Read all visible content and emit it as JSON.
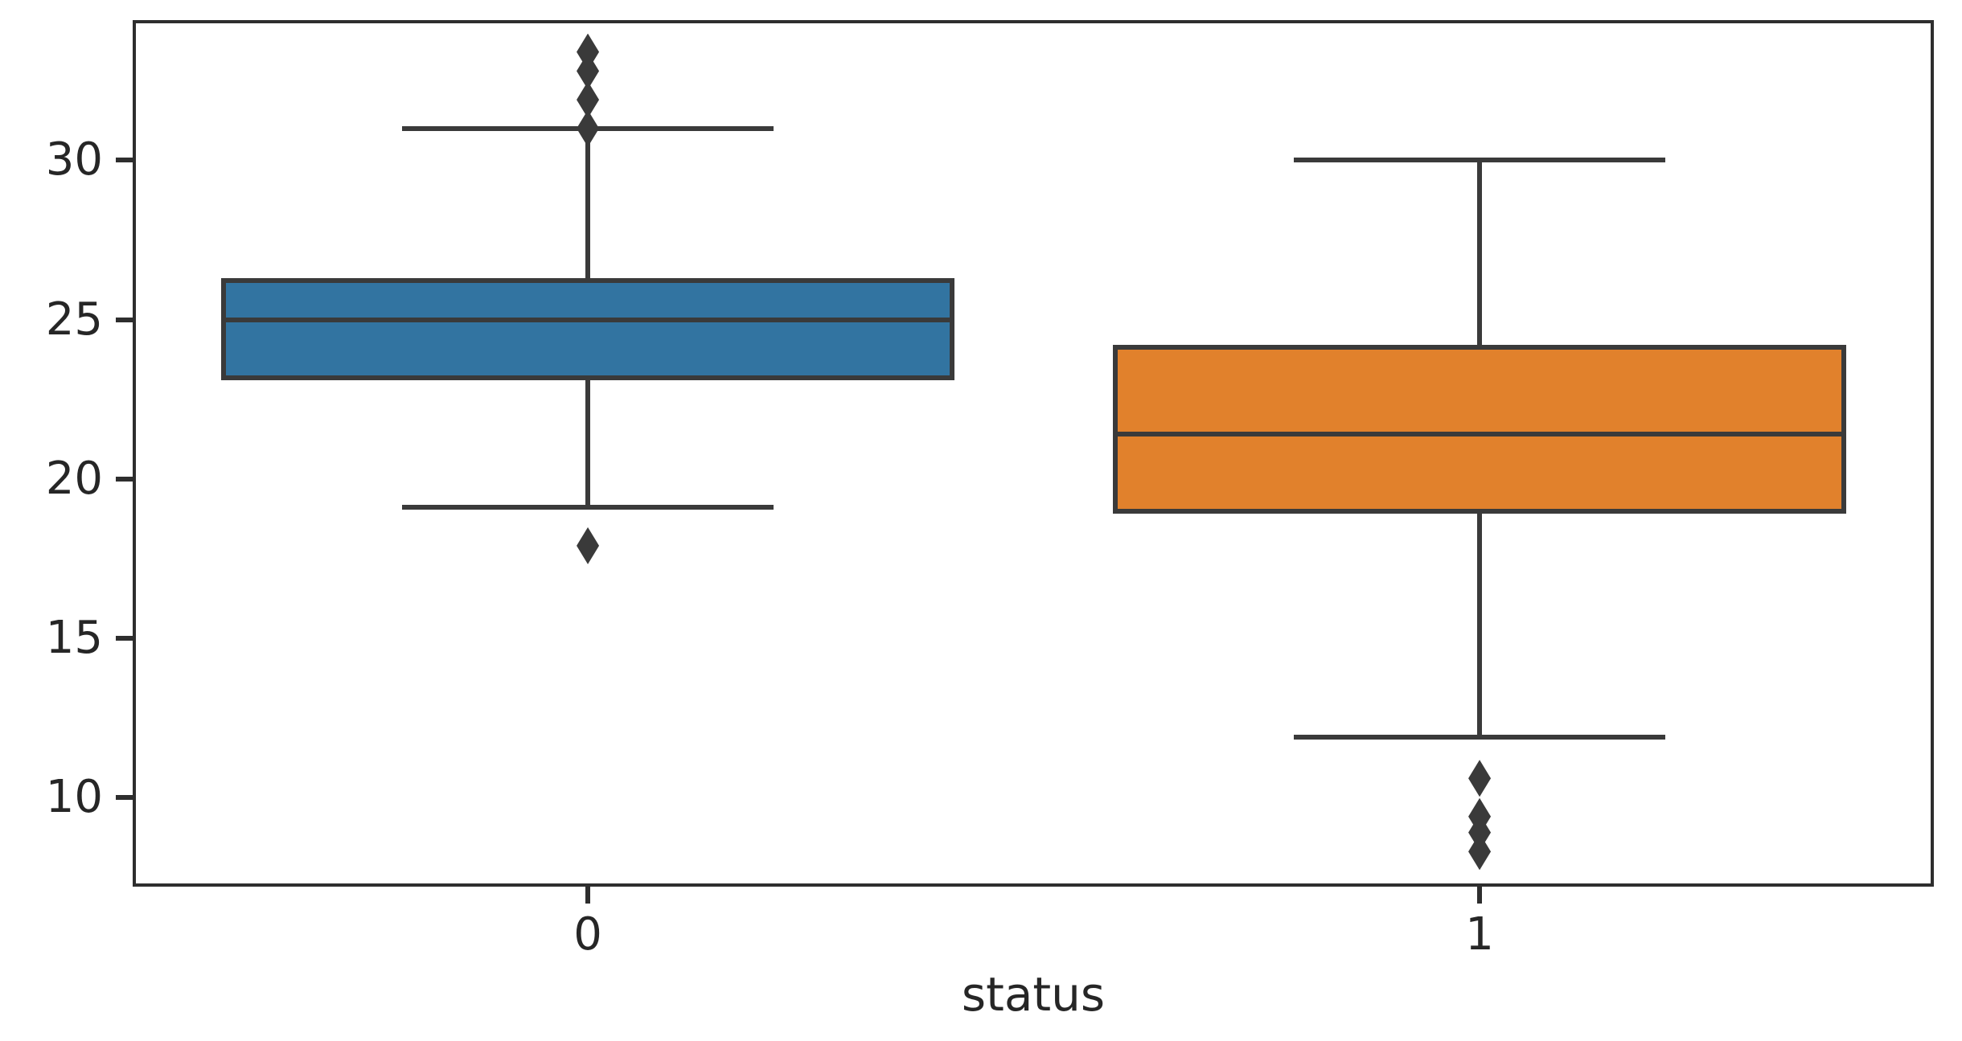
{
  "chart_data": {
    "type": "box",
    "title": "",
    "xlabel": "status",
    "ylabel": "",
    "categories": [
      "0",
      "1"
    ],
    "yticks": [
      30,
      25,
      20,
      15,
      10
    ],
    "ylim": [
      7.2,
      34.4
    ],
    "grid": false,
    "legend": "none",
    "series": [
      {
        "category": "0",
        "fill_color": "#3274a1",
        "q1": 23.1,
        "median": 25.0,
        "q3": 26.3,
        "whisker_low": 19.1,
        "whisker_high": 31.0,
        "outliers": [
          33.4,
          32.8,
          31.9,
          31.0,
          17.9
        ]
      },
      {
        "category": "1",
        "fill_color": "#e1812c",
        "q1": 18.9,
        "median": 21.4,
        "q3": 24.2,
        "whisker_low": 11.9,
        "whisker_high": 30.0,
        "outliers": [
          10.6,
          9.4,
          8.9,
          8.3
        ]
      }
    ],
    "layout": {
      "centers_frac": [
        0.2527,
        0.7478
      ],
      "box_half_frac": 0.2035,
      "cap_half_frac": 0.1031,
      "line_color": "#3a3a3a",
      "spine_color": "#2e2e2e",
      "text_color": "#262626",
      "background": "#ffffff"
    }
  }
}
